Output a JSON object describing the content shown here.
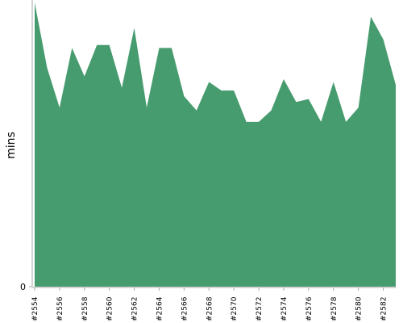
{
  "chart_data": {
    "type": "area",
    "y_label": "mins",
    "color": "#479c6f",
    "categories": [
      "#2554",
      null,
      "#2556",
      null,
      "#2558",
      null,
      "#2560",
      null,
      "#2562",
      null,
      "#2564",
      null,
      "#2566",
      null,
      "#2568",
      null,
      "#2570",
      null,
      "#2572",
      null,
      "#2574",
      null,
      "#2576",
      null,
      "#2578",
      null,
      "#2580",
      null,
      "#2582",
      null
    ],
    "values": [
      10.0,
      7.7,
      6.3,
      8.4,
      7.4,
      8.5,
      8.5,
      7.0,
      9.1,
      6.3,
      8.4,
      8.4,
      6.7,
      6.2,
      7.2,
      6.9,
      6.9,
      5.8,
      5.8,
      6.2,
      7.3,
      6.5,
      6.6,
      5.8,
      7.2,
      5.8,
      6.3,
      9.5,
      8.7,
      7.1
    ],
    "ylim": [
      0,
      10
    ],
    "yticks": [
      0
    ]
  }
}
